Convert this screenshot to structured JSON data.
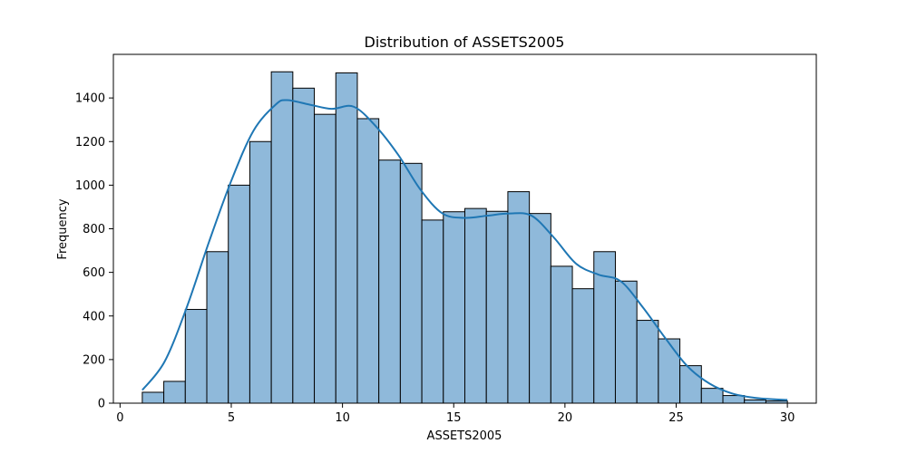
{
  "chart_data": {
    "type": "bar",
    "subtype": "histogram-with-kde",
    "title": "Distribution of ASSETS2005",
    "xlabel": "ASSETS2005",
    "ylabel": "Frequency",
    "xlim": [
      -0.3,
      31.3
    ],
    "ylim": [
      0,
      1600
    ],
    "x_ticks": [
      0,
      5,
      10,
      15,
      20,
      25,
      30
    ],
    "x_tick_labels": [
      "0",
      "5",
      "10",
      "15",
      "20",
      "25",
      "30"
    ],
    "y_ticks": [
      0,
      200,
      400,
      600,
      800,
      1000,
      1200,
      1400
    ],
    "y_tick_labels": [
      "0",
      "200",
      "400",
      "600",
      "800",
      "1000",
      "1200",
      "1400"
    ],
    "bins": {
      "start": 1.0,
      "width": 0.9667,
      "values": [
        50,
        100,
        430,
        695,
        1000,
        1200,
        1520,
        1445,
        1325,
        1515,
        1305,
        1115,
        1100,
        840,
        878,
        893,
        880,
        970,
        870,
        628,
        525,
        695,
        560,
        380,
        295,
        172,
        68,
        35,
        15,
        10
      ]
    },
    "kde": {
      "x": [
        1.0,
        2.0,
        3.0,
        4.0,
        5.0,
        6.0,
        7.0,
        7.5,
        8.5,
        9.5,
        10.5,
        11.5,
        12.5,
        13.5,
        14.5,
        15.5,
        16.5,
        17.5,
        18.5,
        19.5,
        20.5,
        21.5,
        22.5,
        23.5,
        24.5,
        25.5,
        26.5,
        27.5,
        28.5,
        29.5,
        30.0
      ],
      "y": [
        60,
        190,
        440,
        740,
        1020,
        1250,
        1370,
        1390,
        1370,
        1350,
        1360,
        1270,
        1140,
        980,
        870,
        850,
        860,
        870,
        860,
        760,
        640,
        590,
        560,
        440,
        300,
        170,
        90,
        45,
        25,
        17,
        15
      ]
    },
    "colors": {
      "bar_fill": "#8fb9da",
      "bar_edge": "#000000",
      "kde_line": "#1f77b4"
    },
    "grid": false,
    "legend": "none"
  }
}
